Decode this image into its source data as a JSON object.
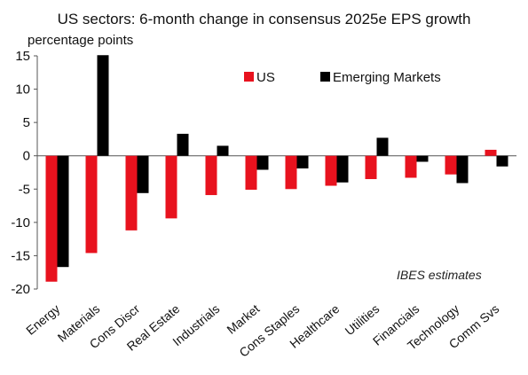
{
  "chart_data": {
    "type": "bar",
    "title": "US sectors: 6-month change in consensus 2025e EPS growth",
    "ylabel": "percentage points",
    "xlabel": "",
    "annotation": "IBES estimates",
    "ylim": [
      -20,
      15
    ],
    "yticks": [
      15,
      10,
      5,
      0,
      -5,
      -10,
      -15,
      -20
    ],
    "grid": false,
    "legend_position": "top-right",
    "categories": [
      "Energy",
      "Materials",
      "Cons Discr",
      "Real Estate",
      "Industrials",
      "Market",
      "Cons Staples",
      "Healthcare",
      "Utilities",
      "Financials",
      "Technology",
      "Comm Svs"
    ],
    "series": [
      {
        "name": "US",
        "color": "#e8121e",
        "values": [
          -18.9,
          -14.6,
          -11.2,
          -9.4,
          -5.9,
          -5.1,
          -5.0,
          -4.5,
          -3.5,
          -3.3,
          -2.8,
          0.9
        ]
      },
      {
        "name": "Emerging Markets",
        "color": "#000000",
        "values": [
          -16.7,
          15.1,
          -5.6,
          3.3,
          1.5,
          -2.1,
          -1.9,
          -4.0,
          2.7,
          -0.9,
          -4.1,
          -1.6
        ]
      }
    ]
  }
}
